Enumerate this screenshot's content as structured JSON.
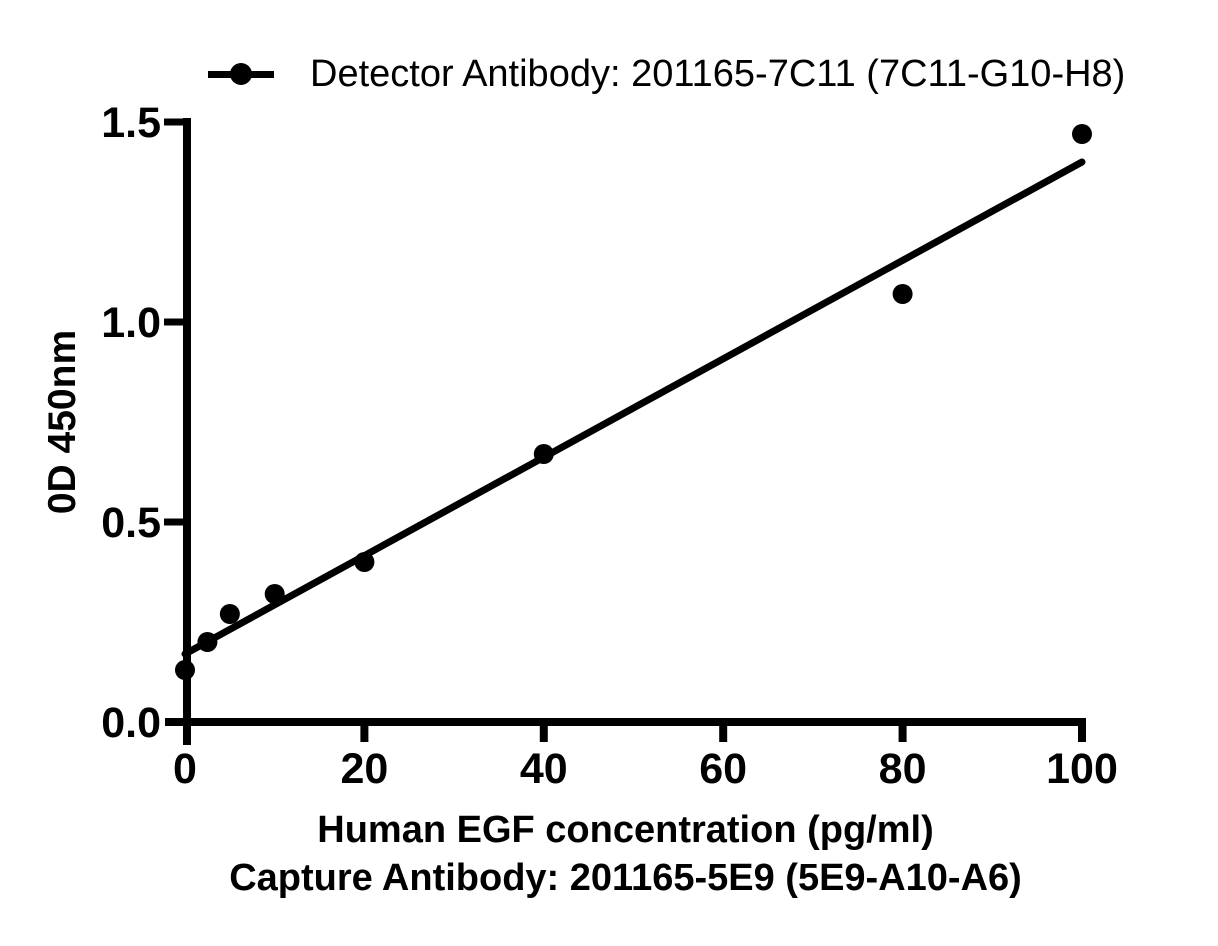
{
  "page": {
    "background": "#ffffff",
    "foreground": "#000000"
  },
  "chart_data": {
    "type": "scatter",
    "title": "",
    "legend": "Detector Antibody: 201165-7C11 (7C11-G10-H8)",
    "legend_position": "top",
    "legend_marker": "line-with-filled-circle",
    "x": [
      0,
      2.5,
      5,
      10,
      20,
      40,
      80,
      100
    ],
    "y": [
      0.13,
      0.2,
      0.27,
      0.32,
      0.4,
      0.67,
      1.07,
      1.47
    ],
    "fit_line": {
      "x1": 0,
      "y1": 0.17,
      "x2": 100,
      "y2": 1.4
    },
    "xlabel": "Human EGF concentration (pg/ml)",
    "xlabel_line2": "Capture Antibody: 201165-5E9 (5E9-A10-A6)",
    "ylabel": "0D 450nm",
    "xlim": [
      0,
      100
    ],
    "ylim": [
      0,
      1.5
    ],
    "xticks": {
      "values": [
        0,
        20,
        40,
        60,
        80,
        100
      ],
      "labels": [
        "0",
        "20",
        "40",
        "60",
        "80",
        "100"
      ]
    },
    "yticks": {
      "values": [
        0,
        0.5,
        1,
        1.5
      ],
      "labels": [
        "0.0",
        "0.5",
        "1.0",
        "1.5"
      ]
    },
    "grid": false,
    "marker": "filled-circle",
    "marker_color": "#000000",
    "line_color": "#000000",
    "color": "#000000"
  }
}
